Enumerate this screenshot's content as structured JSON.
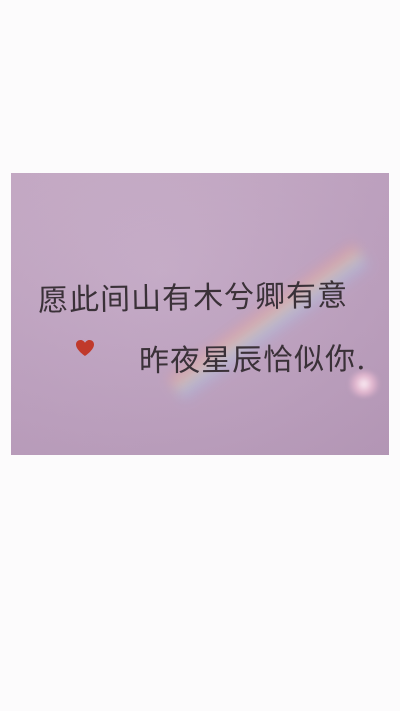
{
  "image": {
    "background_color": "#fcfbfc",
    "photo_color": "#c0a4c1"
  },
  "handwriting": {
    "line1": "愿此间山有木兮卿有意",
    "line2": "昨夜星辰恰似你.",
    "text_color": "#3a3138"
  },
  "decoration": {
    "heart_icon": "heart-icon",
    "heart_color": "#c0392b"
  }
}
